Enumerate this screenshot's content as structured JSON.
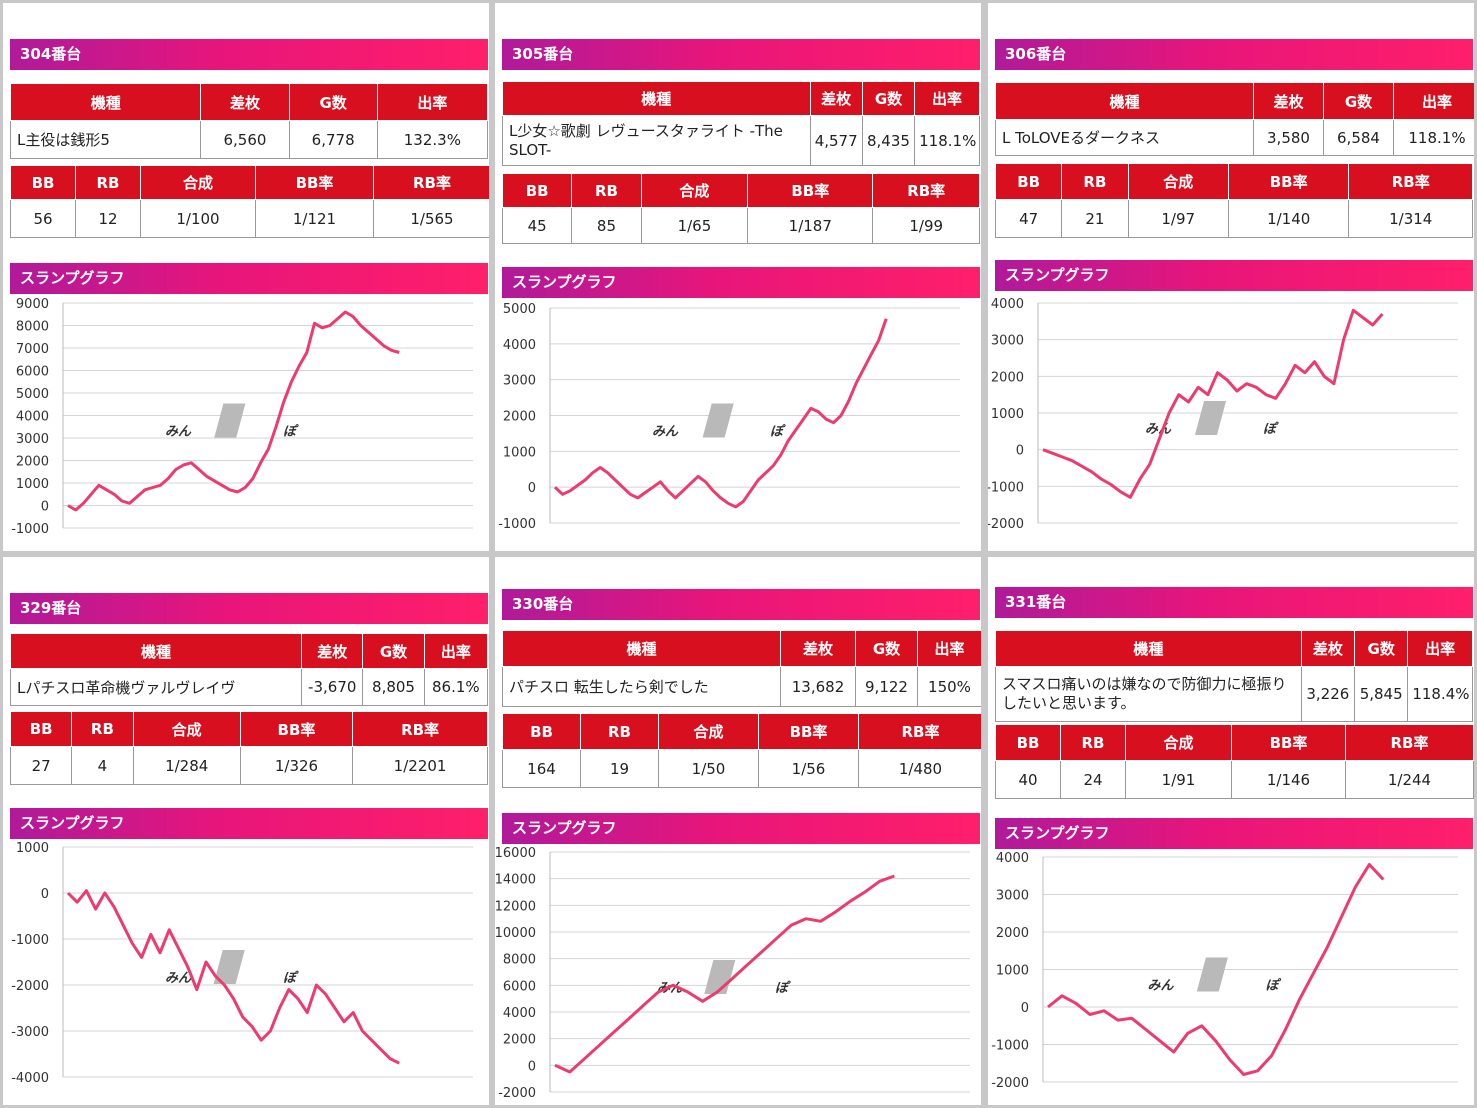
{
  "columns": {
    "machine": [
      "機種",
      "差枚",
      "G数",
      "出率"
    ],
    "stats": [
      "BB",
      "RB",
      "合成",
      "BB率",
      "RB率"
    ]
  },
  "graph_label": "スランプグラフ",
  "watermark": {
    "part1": "みん",
    "part2": "ぽ"
  },
  "colors": {
    "header": "#d80f1e",
    "line": "#ee3a6e",
    "bar_start": "#b01a9a",
    "bar_end": "#ff1f6a"
  },
  "units": [
    {
      "title": "304番台",
      "machine": "L主役は銭形5",
      "diff": "6,560",
      "games": "6,778",
      "rate": "132.3%",
      "bb": "56",
      "rb": "12",
      "combined": "1/100",
      "bb_rate": "1/121",
      "rb_rate": "1/565",
      "chart_data": {
        "type": "line",
        "xlabel": "",
        "ylabel": "",
        "ylim": [
          -1000,
          9000
        ],
        "yticks": [
          "9000",
          "8000",
          "7000",
          "6000",
          "5000",
          "4000",
          "3000",
          "2000",
          "1000",
          "0",
          "-1000"
        ],
        "y": [
          0,
          -200,
          100,
          500,
          900,
          700,
          500,
          200,
          100,
          400,
          700,
          800,
          900,
          1200,
          1600,
          1800,
          1900,
          1600,
          1300,
          1100,
          900,
          700,
          600,
          800,
          1200,
          1900,
          2500,
          3500,
          4600,
          5500,
          6200,
          6800,
          8100,
          7900,
          8000,
          8300,
          8600,
          8400,
          8000,
          7700,
          7400,
          7100,
          6900,
          6800
        ]
      }
    },
    {
      "title": "305番台",
      "machine": "L少女☆歌劇 レヴュースタァライト -The SLOT-",
      "diff": "4,577",
      "games": "8,435",
      "rate": "118.1%",
      "bb": "45",
      "rb": "85",
      "combined": "1/65",
      "bb_rate": "1/187",
      "rb_rate": "1/99",
      "chart_data": {
        "type": "line",
        "xlabel": "",
        "ylabel": "",
        "ylim": [
          -1000,
          5000
        ],
        "yticks": [
          "5000",
          "4000",
          "3000",
          "2000",
          "1000",
          "0",
          "-1000"
        ],
        "y": [
          0,
          -200,
          -100,
          50,
          200,
          400,
          550,
          400,
          200,
          0,
          -200,
          -300,
          -150,
          0,
          150,
          -100,
          -300,
          -100,
          100,
          300,
          150,
          -100,
          -300,
          -450,
          -550,
          -400,
          -100,
          200,
          400,
          600,
          900,
          1300,
          1600,
          1900,
          2200,
          2100,
          1900,
          1800,
          2000,
          2400,
          2900,
          3300,
          3700,
          4100,
          4700
        ]
      }
    },
    {
      "title": "306番台",
      "machine": "L ToLOVEるダークネス",
      "diff": "3,580",
      "games": "6,584",
      "rate": "118.1%",
      "bb": "47",
      "rb": "21",
      "combined": "1/97",
      "bb_rate": "1/140",
      "rb_rate": "1/314",
      "chart_data": {
        "type": "line",
        "xlabel": "",
        "ylabel": "",
        "ylim": [
          -2000,
          4000
        ],
        "yticks": [
          "4000",
          "3000",
          "2000",
          "1000",
          "0",
          "-1000",
          "-2000"
        ],
        "y": [
          0,
          -100,
          -200,
          -300,
          -450,
          -600,
          -800,
          -950,
          -1150,
          -1300,
          -800,
          -400,
          300,
          1000,
          1500,
          1300,
          1700,
          1500,
          2100,
          1900,
          1600,
          1800,
          1700,
          1500,
          1400,
          1800,
          2300,
          2100,
          2400,
          2000,
          1800,
          3000,
          3800,
          3600,
          3400,
          3700
        ]
      }
    },
    {
      "title": "329番台",
      "machine": "Lパチスロ革命機ヴァルヴレイヴ",
      "diff": "-3,670",
      "games": "8,805",
      "rate": "86.1%",
      "bb": "27",
      "rb": "4",
      "combined": "1/284",
      "bb_rate": "1/326",
      "rb_rate": "1/2201",
      "chart_data": {
        "type": "line",
        "xlabel": "",
        "ylabel": "",
        "ylim": [
          -4000,
          1000
        ],
        "yticks": [
          "1000",
          "0",
          "-1000",
          "-2000",
          "-3000",
          "-4000"
        ],
        "y": [
          0,
          -200,
          50,
          -350,
          0,
          -300,
          -700,
          -1100,
          -1400,
          -900,
          -1300,
          -800,
          -1200,
          -1600,
          -2100,
          -1500,
          -1800,
          -2000,
          -2300,
          -2700,
          -2900,
          -3200,
          -3000,
          -2500,
          -2100,
          -2300,
          -2600,
          -2000,
          -2200,
          -2500,
          -2800,
          -2600,
          -3000,
          -3200,
          -3400,
          -3600,
          -3700
        ]
      }
    },
    {
      "title": "330番台",
      "machine": "パチスロ 転生したら剣でした",
      "diff": "13,682",
      "games": "9,122",
      "rate": "150%",
      "bb": "164",
      "rb": "19",
      "combined": "1/50",
      "bb_rate": "1/56",
      "rb_rate": "1/480",
      "chart_data": {
        "type": "line",
        "xlabel": "",
        "ylabel": "",
        "ylim": [
          -2000,
          16000
        ],
        "yticks": [
          "16000",
          "14000",
          "12000",
          "10000",
          "8000",
          "6000",
          "4000",
          "2000",
          "0",
          "-2000"
        ],
        "y": [
          0,
          -500,
          500,
          1500,
          2500,
          3500,
          4500,
          5500,
          6000,
          5500,
          4800,
          5500,
          6500,
          7500,
          8500,
          9500,
          10500,
          11000,
          10800,
          11500,
          12300,
          13000,
          13800,
          14200
        ]
      }
    },
    {
      "title": "331番台",
      "machine": "スマスロ痛いのは嫌なので防御力に極振りしたいと思います。",
      "diff": "3,226",
      "games": "5,845",
      "rate": "118.4%",
      "bb": "40",
      "rb": "24",
      "combined": "1/91",
      "bb_rate": "1/146",
      "rb_rate": "1/244",
      "chart_data": {
        "type": "line",
        "xlabel": "",
        "ylabel": "",
        "ylim": [
          -2000,
          4000
        ],
        "yticks": [
          "4000",
          "3000",
          "2000",
          "1000",
          "0",
          "-1000",
          "-2000"
        ],
        "y": [
          0,
          300,
          100,
          -200,
          -100,
          -350,
          -300,
          -600,
          -900,
          -1200,
          -700,
          -500,
          -900,
          -1400,
          -1800,
          -1700,
          -1300,
          -600,
          200,
          900,
          1600,
          2400,
          3200,
          3800,
          3400
        ]
      }
    }
  ]
}
